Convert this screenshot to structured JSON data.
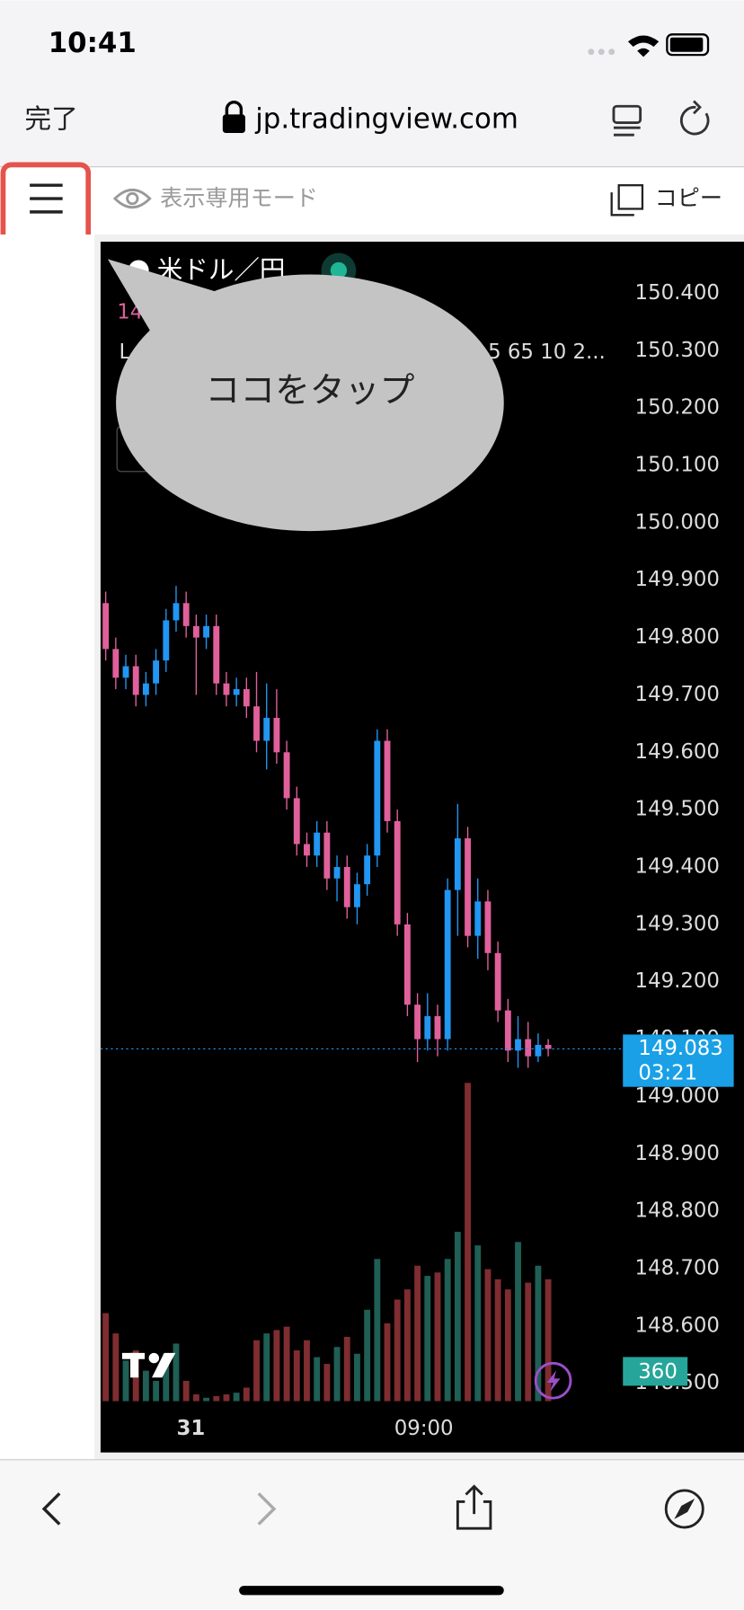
{
  "status_bar": {
    "time": "10:41"
  },
  "browser": {
    "done": "完了",
    "url": "jp.tradingview.com"
  },
  "toolbar": {
    "mode": "表示専用モード",
    "copy": "コピー"
  },
  "callout": "ココをタップ",
  "chart_data": {
    "type": "candlestick",
    "title": "米ドル／円",
    "price_fragment": "14",
    "legend_fragment_left": "L",
    "legend_fragment_right": "5 65 10 2...",
    "ylim": [
      148.46,
      150.49
    ],
    "yticks": [
      {
        "value": 150.4,
        "label": "150.400"
      },
      {
        "value": 150.3,
        "label": "150.300"
      },
      {
        "value": 150.2,
        "label": "150.200"
      },
      {
        "value": 150.1,
        "label": "150.100"
      },
      {
        "value": 150.0,
        "label": "150.000"
      },
      {
        "value": 149.9,
        "label": "149.900"
      },
      {
        "value": 149.8,
        "label": "149.800"
      },
      {
        "value": 149.7,
        "label": "149.700"
      },
      {
        "value": 149.6,
        "label": "149.600"
      },
      {
        "value": 149.5,
        "label": "149.500"
      },
      {
        "value": 149.4,
        "label": "149.400"
      },
      {
        "value": 149.3,
        "label": "149.300"
      },
      {
        "value": 149.2,
        "label": "149.200"
      },
      {
        "value": 149.1,
        "label": "149.100"
      },
      {
        "value": 149.0,
        "label": "149.000"
      },
      {
        "value": 148.9,
        "label": "148.900"
      },
      {
        "value": 148.8,
        "label": "148.800"
      },
      {
        "value": 148.7,
        "label": "148.700"
      },
      {
        "value": 148.6,
        "label": "148.600"
      },
      {
        "value": 148.5,
        "label": "148.500"
      }
    ],
    "open": [
      149.86,
      149.78,
      149.73,
      149.75,
      149.7,
      149.72,
      149.76,
      149.83,
      149.86,
      149.82,
      149.8,
      149.82,
      149.72,
      149.7,
      149.71,
      149.68,
      149.62,
      149.66,
      149.6,
      149.52,
      149.44,
      149.42,
      149.46,
      149.38,
      149.4,
      149.33,
      149.37,
      149.42,
      149.62,
      149.48,
      149.3,
      149.16,
      149.1,
      149.14,
      149.1,
      149.36,
      149.45,
      149.28,
      149.34,
      149.25,
      149.15,
      149.08,
      149.1,
      149.07,
      149.09
    ],
    "high": [
      149.88,
      149.8,
      149.77,
      149.77,
      149.74,
      149.78,
      149.85,
      149.89,
      149.88,
      149.84,
      149.84,
      149.84,
      149.74,
      149.73,
      149.73,
      149.74,
      149.72,
      149.71,
      149.62,
      149.54,
      149.46,
      149.48,
      149.48,
      149.42,
      149.42,
      149.39,
      149.44,
      149.64,
      149.64,
      149.5,
      149.32,
      149.18,
      149.18,
      149.16,
      149.38,
      149.51,
      149.47,
      149.38,
      149.36,
      149.27,
      149.17,
      149.14,
      149.13,
      149.11,
      149.1
    ],
    "low": [
      149.76,
      149.71,
      149.71,
      149.68,
      149.68,
      149.7,
      149.74,
      149.81,
      149.8,
      149.7,
      149.78,
      149.7,
      149.68,
      149.68,
      149.66,
      149.6,
      149.57,
      149.58,
      149.5,
      149.42,
      149.4,
      149.4,
      149.36,
      149.34,
      149.31,
      149.3,
      149.35,
      149.4,
      149.46,
      149.28,
      149.14,
      149.06,
      149.08,
      149.07,
      149.08,
      149.28,
      149.26,
      149.24,
      149.22,
      149.13,
      149.06,
      149.05,
      149.05,
      149.06,
      149.07
    ],
    "close": [
      149.78,
      149.73,
      149.75,
      149.7,
      149.72,
      149.76,
      149.83,
      149.86,
      149.82,
      149.8,
      149.82,
      149.72,
      149.7,
      149.71,
      149.68,
      149.62,
      149.66,
      149.6,
      149.52,
      149.44,
      149.42,
      149.46,
      149.38,
      149.4,
      149.33,
      149.37,
      149.42,
      149.62,
      149.48,
      149.3,
      149.16,
      149.1,
      149.14,
      149.1,
      149.36,
      149.45,
      149.28,
      149.34,
      149.25,
      149.15,
      149.08,
      149.1,
      149.07,
      149.09,
      149.083
    ],
    "volume": [
      260,
      200,
      120,
      150,
      90,
      60,
      140,
      170,
      60,
      20,
      10,
      15,
      20,
      25,
      40,
      180,
      200,
      210,
      220,
      150,
      180,
      130,
      110,
      160,
      190,
      140,
      270,
      420,
      230,
      300,
      330,
      400,
      370,
      380,
      420,
      500,
      940,
      460,
      390,
      360,
      330,
      470,
      350,
      400,
      360
    ],
    "volume_lim": [
      0,
      1000
    ],
    "up_color": "#2196f3",
    "down_color": "#e0609b",
    "volume_up_color": "#1f5f55",
    "volume_down_color": "#7f2d30",
    "last_price": 149.083,
    "countdown": "03:21",
    "current_volume": 360,
    "time_labels": [
      "31",
      "09:00"
    ]
  }
}
